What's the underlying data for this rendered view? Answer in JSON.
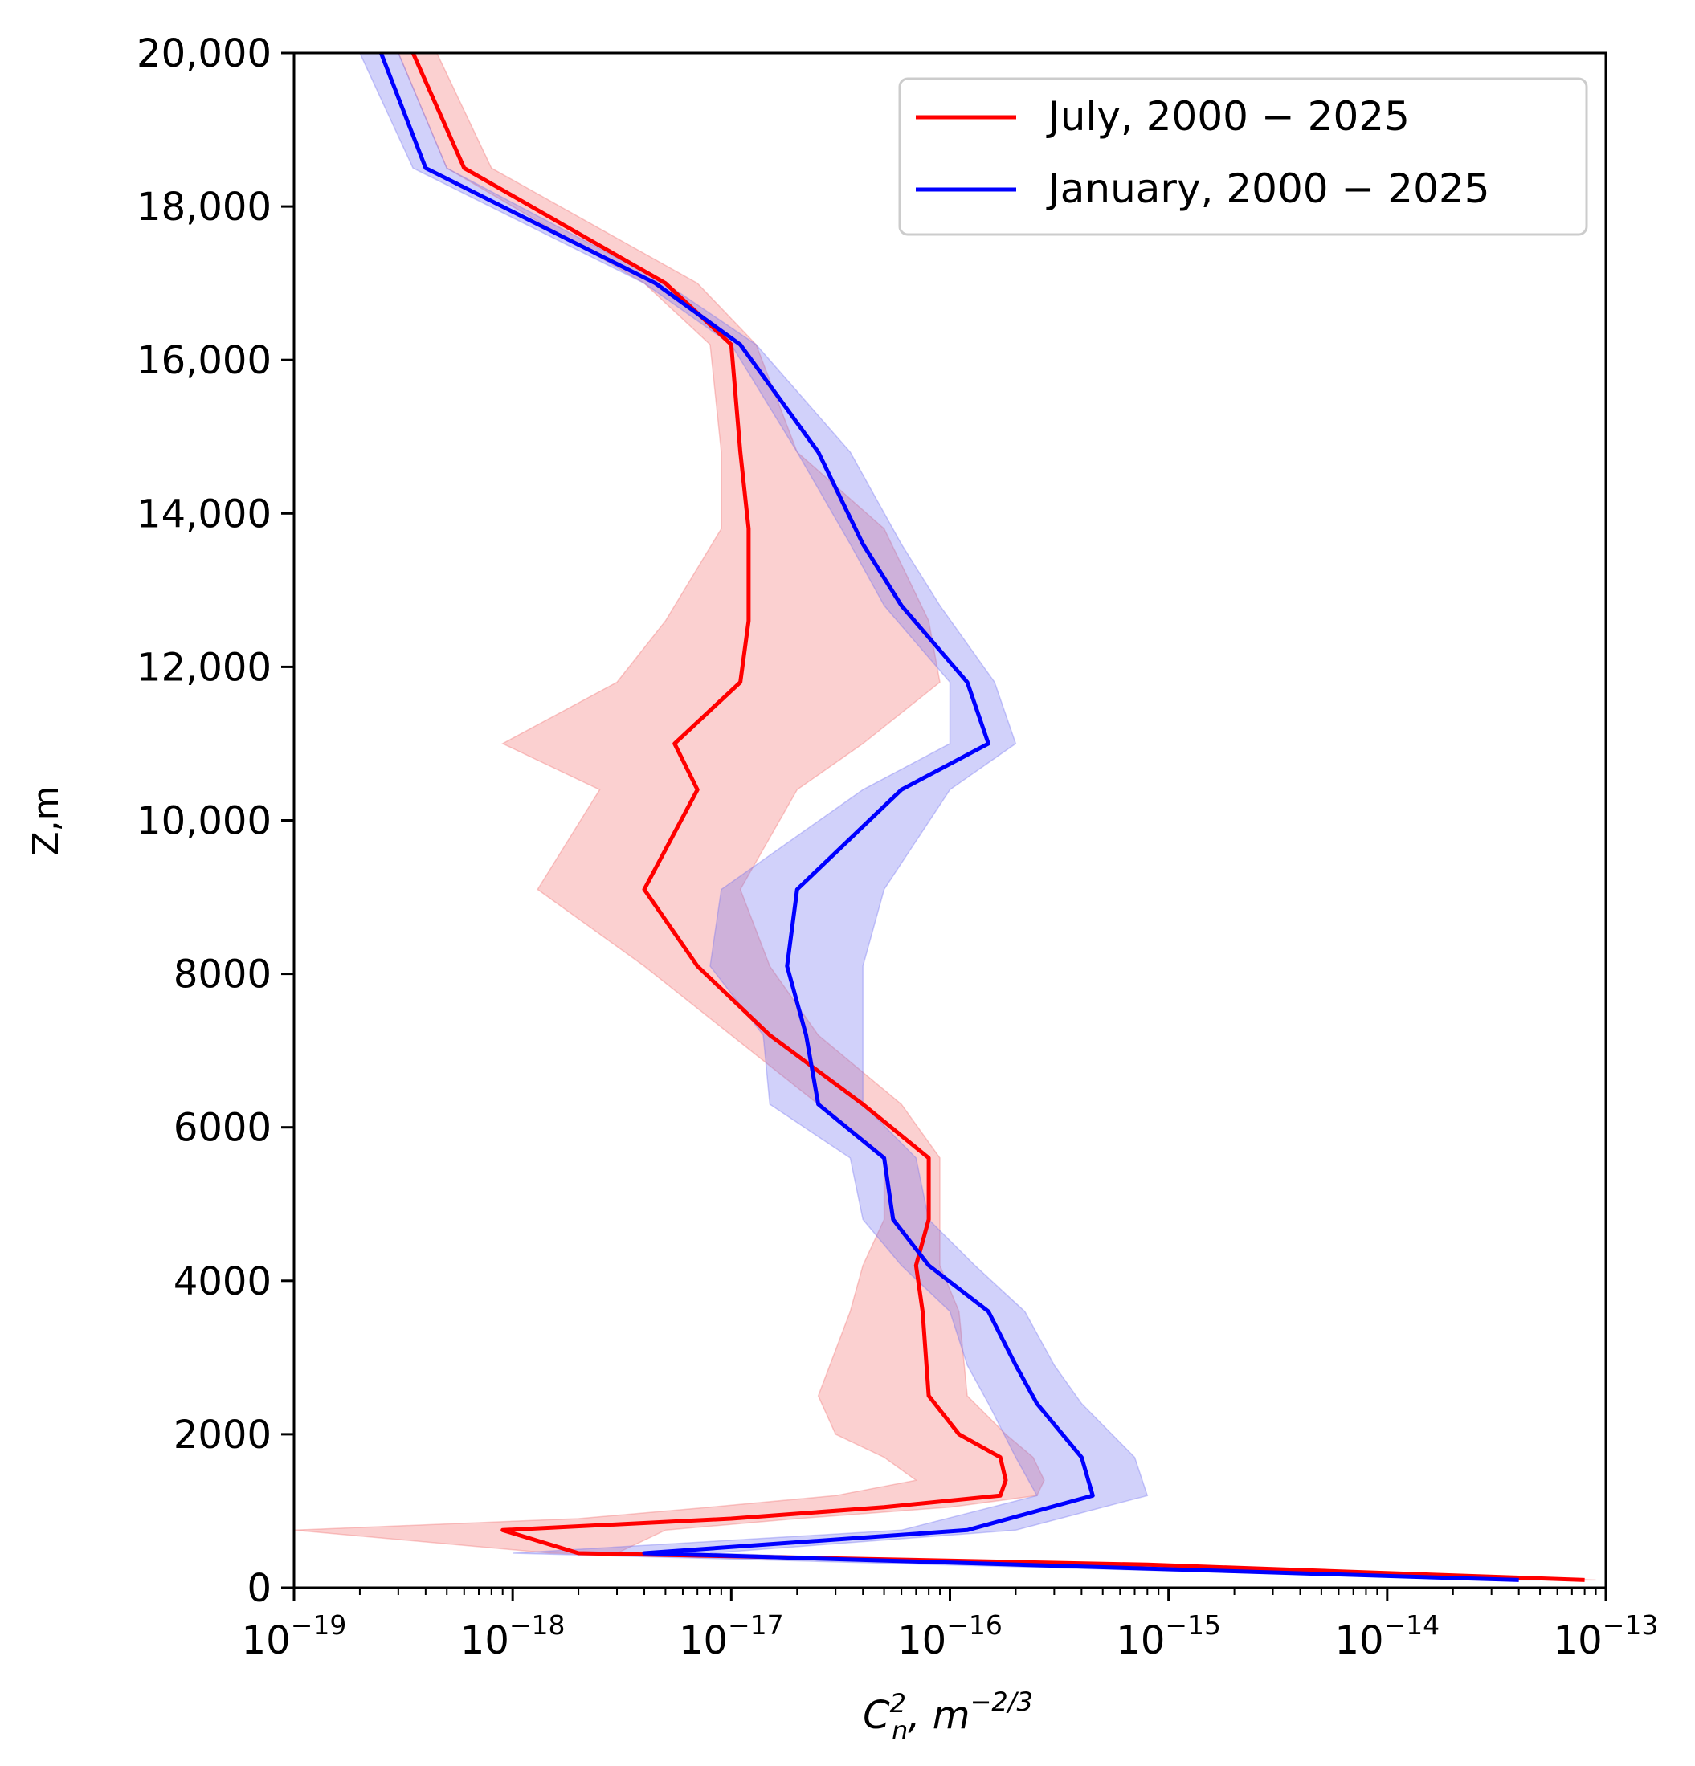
{
  "chart_data": {
    "type": "line",
    "title": "",
    "xlabel": "C_n^2, m^-2/3",
    "xlabel_parts": {
      "base": "C",
      "sup": "2",
      "sub": "n",
      "unit": ", m",
      "unit_exp": "−2/3"
    },
    "ylabel": "Z,m",
    "x_scale": "log",
    "xlim": [
      1e-19,
      1e-13
    ],
    "ylim": [
      0,
      20000
    ],
    "x_ticks": [
      {
        "mantissa": "10",
        "exponent": "−19",
        "value": 1e-19
      },
      {
        "mantissa": "10",
        "exponent": "−18",
        "value": 1e-18
      },
      {
        "mantissa": "10",
        "exponent": "−17",
        "value": 1e-17
      },
      {
        "mantissa": "10",
        "exponent": "−16",
        "value": 1e-16
      },
      {
        "mantissa": "10",
        "exponent": "−15",
        "value": 1e-15
      },
      {
        "mantissa": "10",
        "exponent": "−14",
        "value": 1e-14
      },
      {
        "mantissa": "10",
        "exponent": "−13",
        "value": 1e-13
      }
    ],
    "y_ticks": [
      {
        "label": "0",
        "value": 0
      },
      {
        "label": "2000",
        "value": 2000
      },
      {
        "label": "4000",
        "value": 4000
      },
      {
        "label": "6000",
        "value": 6000
      },
      {
        "label": "8000",
        "value": 8000
      },
      {
        "label": "10,000",
        "value": 10000
      },
      {
        "label": "12,000",
        "value": 12000
      },
      {
        "label": "14,000",
        "value": 14000
      },
      {
        "label": "16,000",
        "value": 16000
      },
      {
        "label": "18,000",
        "value": 18000
      },
      {
        "label": "20,000",
        "value": 20000
      }
    ],
    "legend": {
      "position": "top-right"
    },
    "series": [
      {
        "name": "July, 2000 − 2025",
        "color": "#ff0000",
        "band_color": "#f26d6d",
        "z": [
          100,
          300,
          450,
          750,
          900,
          1050,
          1200,
          1400,
          1700,
          2000,
          2500,
          3600,
          4200,
          4800,
          5600,
          6300,
          7200,
          8100,
          9100,
          10400,
          11000,
          11800,
          12600,
          13800,
          14800,
          16200,
          17000,
          18500,
          20000
        ],
        "value": [
          8e-14,
          8e-16,
          2e-18,
          9e-19,
          1e-17,
          5e-17,
          1.7e-16,
          1.8e-16,
          1.7e-16,
          1.1e-16,
          8e-17,
          7.5e-17,
          7e-17,
          8e-17,
          8e-17,
          4e-17,
          1.5e-17,
          7e-18,
          4e-18,
          7e-18,
          5.5e-18,
          1.1e-17,
          1.2e-17,
          1.2e-17,
          1.1e-17,
          1e-17,
          5e-18,
          6e-19,
          3.5e-19
        ],
        "lower": [
          7e-14,
          6e-16,
          1.5e-18,
          1e-19,
          2e-18,
          8e-18,
          3e-17,
          7e-17,
          5e-17,
          3e-17,
          2.5e-17,
          3.5e-17,
          4e-17,
          5e-17,
          5e-17,
          2.5e-17,
          1e-17,
          4e-18,
          1.3e-18,
          2.5e-18,
          9e-19,
          3e-18,
          5e-18,
          9e-18,
          9e-18,
          8e-18,
          4e-18,
          5e-19,
          3e-19
        ],
        "upper": [
          9e-14,
          1e-15,
          3e-18,
          5e-18,
          2e-17,
          1e-16,
          2.5e-16,
          2.7e-16,
          2.4e-16,
          1.8e-16,
          1.2e-16,
          1.1e-16,
          9e-17,
          9e-17,
          9e-17,
          6e-17,
          2.5e-17,
          1.5e-17,
          1.1e-17,
          2e-17,
          4e-17,
          9e-17,
          8e-17,
          5e-17,
          2e-17,
          1.3e-17,
          7e-18,
          8e-19,
          4.5e-19
        ]
      },
      {
        "name": "January, 2000 − 2025",
        "color": "#0000ff",
        "band_color": "#7070f0",
        "z": [
          100,
          450,
          750,
          1200,
          1700,
          2400,
          2900,
          3600,
          4200,
          4800,
          5600,
          6300,
          7200,
          8100,
          9100,
          10400,
          11000,
          11800,
          12800,
          13600,
          14800,
          16200,
          17000,
          18500,
          20000
        ],
        "value": [
          4e-14,
          4e-18,
          1.2e-16,
          4.5e-16,
          4e-16,
          2.5e-16,
          2e-16,
          1.5e-16,
          8e-17,
          5.5e-17,
          5e-17,
          2.5e-17,
          2.2e-17,
          1.8e-17,
          2e-17,
          6e-17,
          1.5e-16,
          1.2e-16,
          6e-17,
          4e-17,
          2.5e-17,
          1.1e-17,
          4.5e-18,
          4e-19,
          2.5e-19
        ],
        "lower": [
          3.5e-14,
          1e-18,
          6e-17,
          2.5e-16,
          2e-16,
          1.5e-16,
          1.2e-16,
          1e-16,
          6e-17,
          4e-17,
          3.5e-17,
          1.5e-17,
          1.4e-17,
          8e-18,
          9e-18,
          4e-17,
          1e-16,
          1e-16,
          5e-17,
          3.5e-17,
          2e-17,
          1e-17,
          4e-18,
          3.5e-19,
          2e-19
        ],
        "upper": [
          5e-14,
          8e-18,
          2e-16,
          8e-16,
          7e-16,
          4e-16,
          3e-16,
          2.2e-16,
          1.3e-16,
          8e-17,
          7e-17,
          4e-17,
          4e-17,
          4e-17,
          5e-17,
          1e-16,
          2e-16,
          1.6e-16,
          9e-17,
          6e-17,
          3.5e-17,
          1.3e-17,
          5e-18,
          5e-19,
          3e-19
        ]
      }
    ]
  }
}
